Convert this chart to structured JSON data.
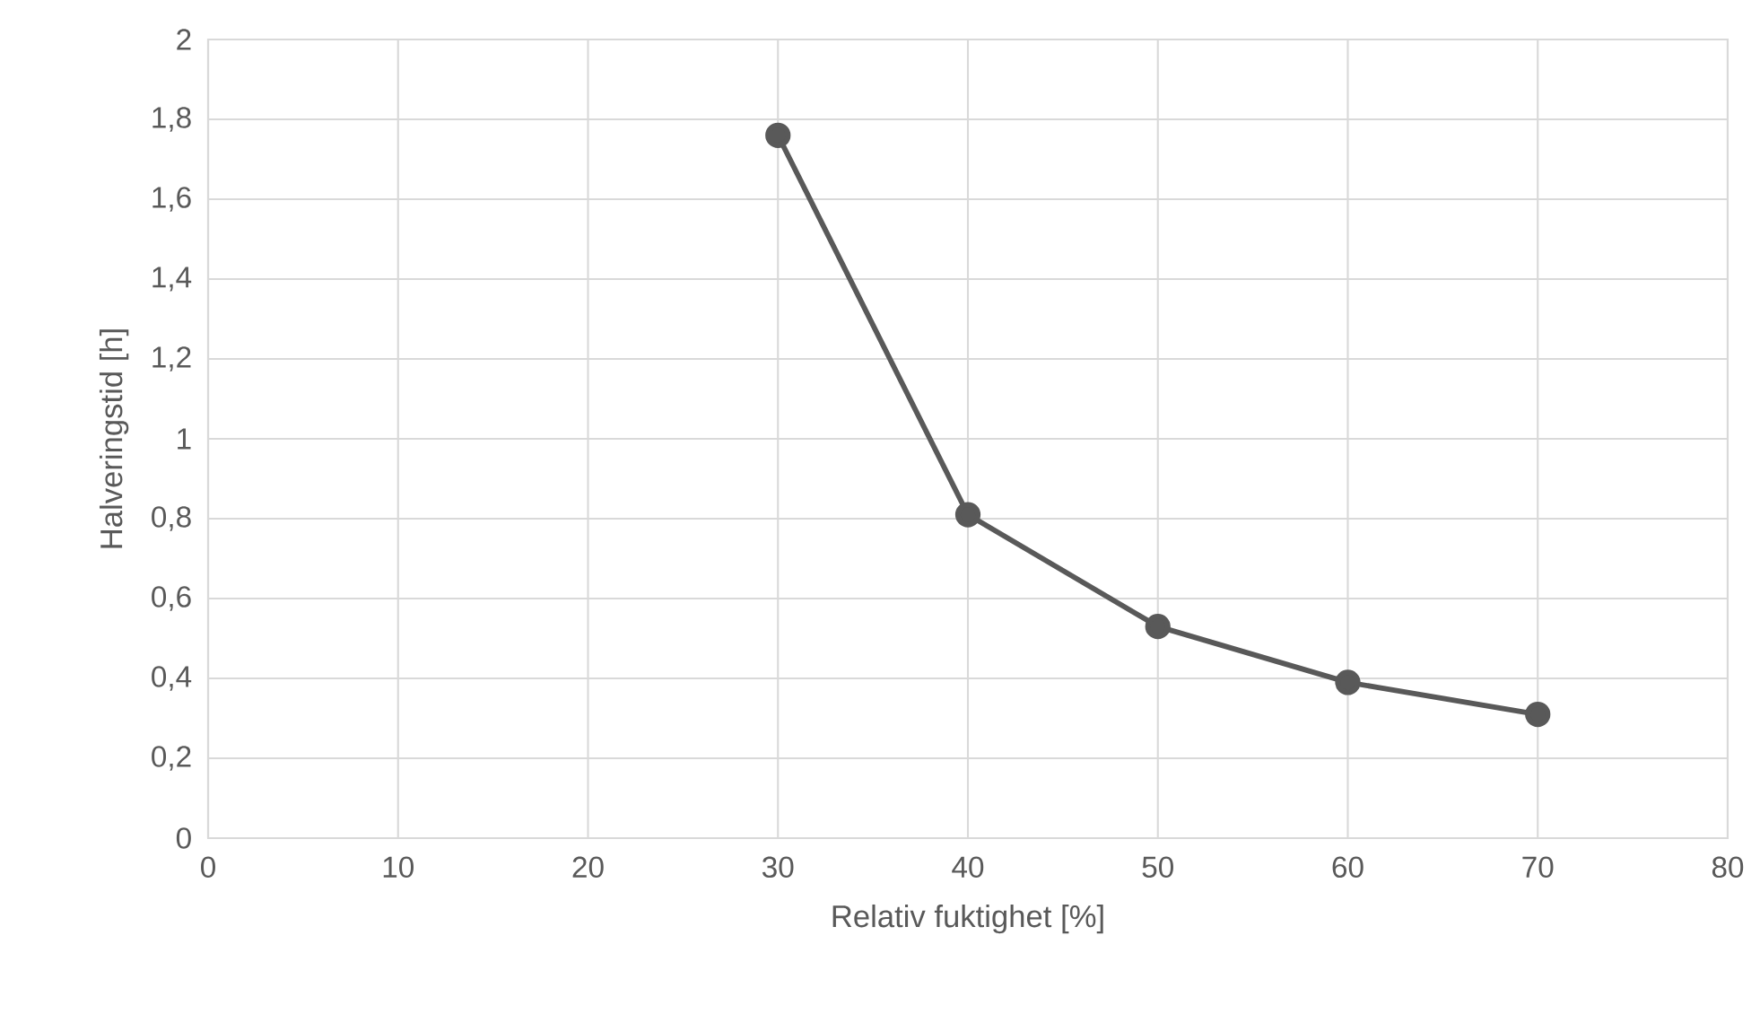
{
  "chart_data": {
    "type": "line",
    "xlabel": "Relativ fuktighet [%]",
    "ylabel": "Halveringstid [h]",
    "x": [
      30,
      40,
      50,
      60,
      70
    ],
    "series": [
      {
        "color": "#595959",
        "values": [
          1.76,
          0.81,
          0.53,
          0.39,
          0.31
        ]
      }
    ],
    "xlim": [
      0,
      80
    ],
    "xticks": [
      0,
      10,
      20,
      30,
      40,
      50,
      60,
      70,
      80
    ],
    "ylim": [
      0,
      2
    ],
    "yticks": [
      0,
      {
        "value": 0.2,
        "label": "0,2"
      },
      {
        "value": 0.4,
        "label": "0,4"
      },
      {
        "value": 0.6,
        "label": "0,6"
      },
      {
        "value": 0.8,
        "label": "0,8"
      },
      1,
      {
        "value": 1.2,
        "label": "1,2"
      },
      {
        "value": 1.4,
        "label": "1,4"
      },
      {
        "value": 1.6,
        "label": "1,6"
      },
      {
        "value": 1.8,
        "label": "1,8"
      },
      2
    ],
    "grid": true,
    "marker": "circle",
    "line_style": "solid"
  }
}
